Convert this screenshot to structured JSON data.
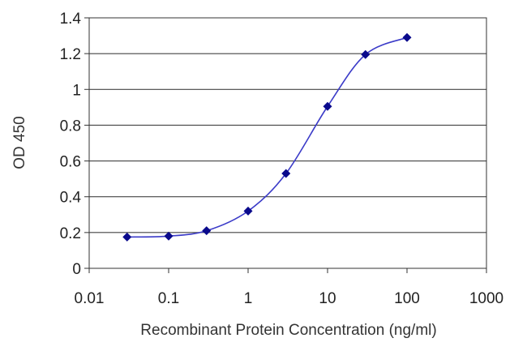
{
  "chart_data": {
    "type": "scatter",
    "title": "",
    "xlabel": "Recombinant Protein Concentration (ng/ml)",
    "ylabel": "OD 450",
    "x_scale": "log",
    "xlim": [
      0.01,
      1000
    ],
    "ylim": [
      0,
      1.4
    ],
    "x_tick_labels": [
      "0.01",
      "0.1",
      "1",
      "10",
      "100",
      "1000"
    ],
    "y_tick_labels": [
      "0",
      "0.2",
      "0.4",
      "0.6",
      "0.8",
      "1",
      "1.2",
      "1.4"
    ],
    "grid": "horizontal",
    "legend": "none",
    "series": [
      {
        "x": [
          0.03,
          0.1,
          0.3,
          1,
          3,
          10,
          30,
          100
        ],
        "y": [
          0.175,
          0.18,
          0.21,
          0.32,
          0.53,
          0.905,
          1.195,
          1.29
        ],
        "marker": "diamond",
        "color": "#0a0a8c",
        "fit_line": "sigmoid",
        "line_color": "#3b3bc8"
      }
    ]
  }
}
